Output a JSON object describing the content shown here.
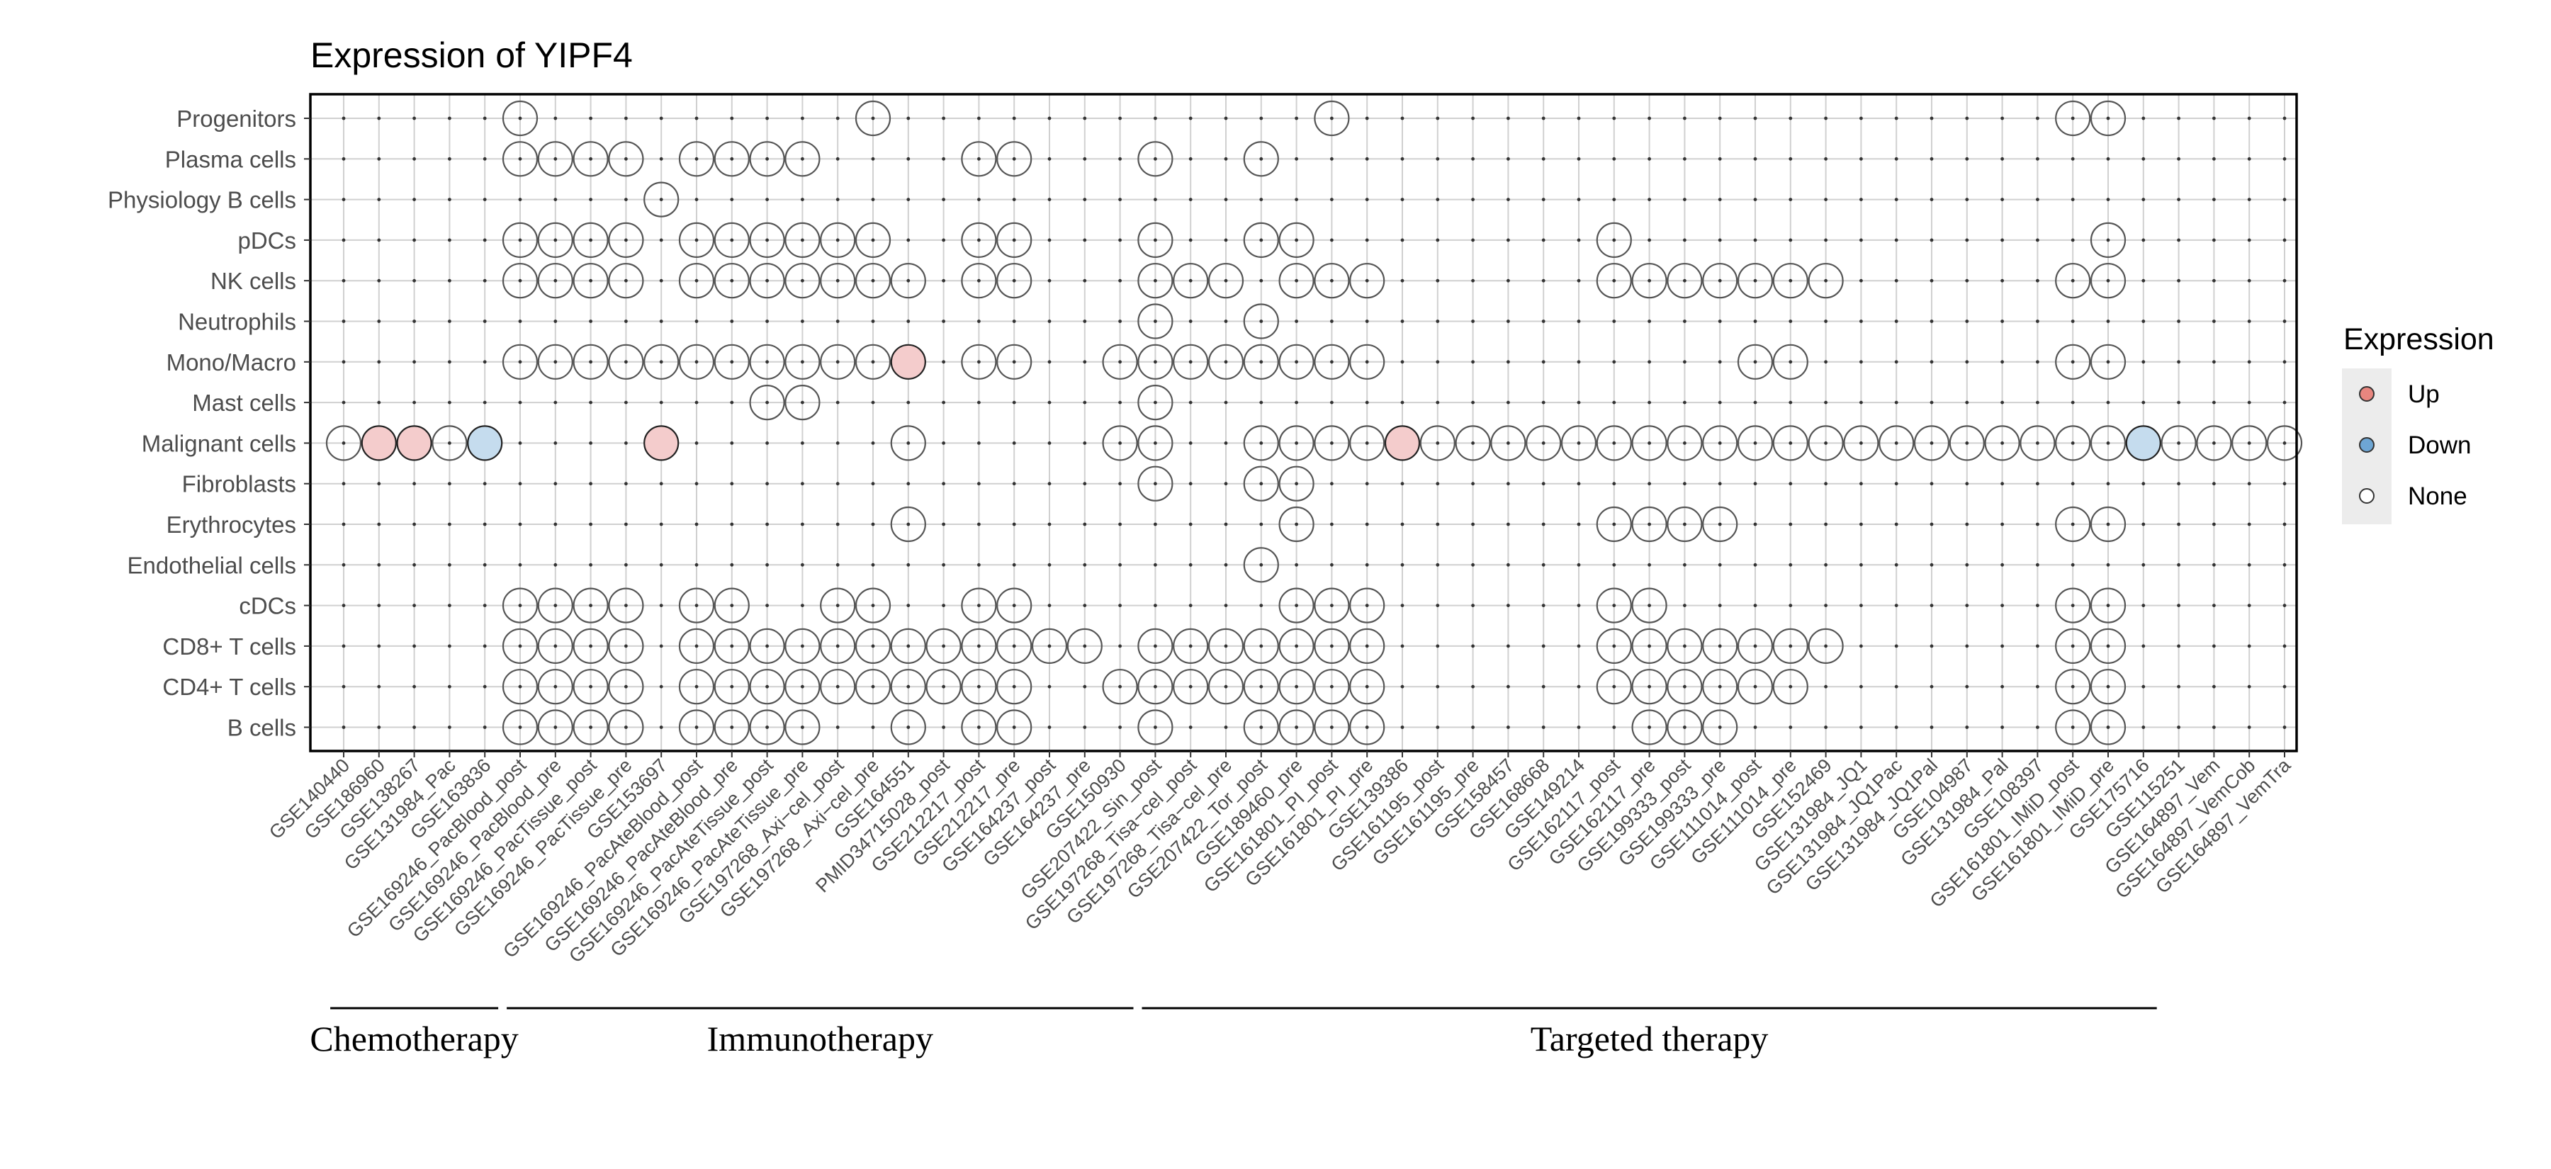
{
  "chart_data": {
    "type": "scatter",
    "title": "Expression of YIPF4",
    "xlabel": "",
    "ylabel": "",
    "grid": true,
    "datasets": [
      "GSE140440",
      "GSE186960",
      "GSE138267",
      "GSE131984_Pac",
      "GSE163836",
      "GSE169246_PacBlood_post",
      "GSE169246_PacBlood_pre",
      "GSE169246_PacTissue_post",
      "GSE169246_PacTissue_pre",
      "GSE153697",
      "GSE169246_PacAteBlood_post",
      "GSE169246_PacAteBlood_pre",
      "GSE169246_PacAteTissue_post",
      "GSE169246_PacAteTissue_pre",
      "GSE197268_Axi−cel_post",
      "GSE197268_Axi−cel_pre",
      "GSE164551",
      "PMID34715028_post",
      "GSE212217_post",
      "GSE212217_pre",
      "GSE164237_post",
      "GSE164237_pre",
      "GSE150930",
      "GSE207422_Sin_post",
      "GSE197268_Tisa−cel_post",
      "GSE197268_Tisa−cel_pre",
      "GSE207422_Tor_post",
      "GSE189460_pre",
      "GSE161801_PI_post",
      "GSE161801_PI_pre",
      "GSE139386",
      "GSE161195_post",
      "GSE161195_pre",
      "GSE158457",
      "GSE168668",
      "GSE149214",
      "GSE162117_post",
      "GSE162117_pre",
      "GSE199333_post",
      "GSE199333_pre",
      "GSE111014_post",
      "GSE111014_pre",
      "GSE152469",
      "GSE131984_JQ1",
      "GSE131984_JQ1Pac",
      "GSE131984_JQ1Pal",
      "GSE104987",
      "GSE131984_Pal",
      "GSE108397",
      "GSE161801_IMiD_post",
      "GSE161801_IMiD_pre",
      "GSE175716",
      "GSE115251",
      "GSE164897_Vem",
      "GSE164897_VemCob",
      "GSE164897_VemTra"
    ],
    "cell_types": [
      "Progenitors",
      "Plasma cells",
      "Physiology B cells",
      "pDCs",
      "NK cells",
      "Neutrophils",
      "Mono/Macro",
      "Mast cells",
      "Malignant cells",
      "Fibroblasts",
      "Erythrocytes",
      "Endothelial cells",
      "cDCs",
      "CD8+ T cells",
      "CD4+ T cells",
      "B cells"
    ],
    "present": {
      "Progenitors": [
        5,
        15,
        28,
        49,
        50
      ],
      "Plasma cells": [
        5,
        6,
        7,
        8,
        10,
        11,
        12,
        13,
        18,
        19,
        23,
        26
      ],
      "Physiology B cells": [
        9
      ],
      "pDCs": [
        5,
        6,
        7,
        8,
        10,
        11,
        12,
        13,
        14,
        15,
        18,
        19,
        23,
        26,
        27,
        36,
        50
      ],
      "NK cells": [
        5,
        6,
        7,
        8,
        10,
        11,
        12,
        13,
        14,
        15,
        16,
        18,
        19,
        23,
        24,
        25,
        27,
        28,
        29,
        36,
        37,
        38,
        39,
        40,
        41,
        42,
        49,
        50
      ],
      "Neutrophils": [
        23,
        26
      ],
      "Mono/Macro": [
        5,
        6,
        7,
        8,
        9,
        10,
        11,
        12,
        13,
        14,
        15,
        16,
        18,
        19,
        22,
        23,
        24,
        25,
        26,
        27,
        28,
        29,
        40,
        41,
        49,
        50
      ],
      "Mast cells": [
        12,
        13,
        23
      ],
      "Malignant cells": [
        0,
        1,
        2,
        3,
        4,
        9,
        16,
        22,
        23,
        26,
        27,
        28,
        29,
        30,
        31,
        32,
        33,
        34,
        35,
        36,
        37,
        38,
        39,
        40,
        41,
        42,
        43,
        44,
        45,
        46,
        47,
        48,
        49,
        50,
        51,
        52,
        53,
        54,
        55
      ],
      "Fibroblasts": [
        23,
        26,
        27
      ],
      "Erythrocytes": [
        16,
        27,
        36,
        37,
        38,
        39,
        49,
        50
      ],
      "Endothelial cells": [
        26
      ],
      "cDCs": [
        5,
        6,
        7,
        8,
        10,
        11,
        14,
        15,
        18,
        19,
        27,
        28,
        29,
        36,
        37,
        49,
        50
      ],
      "CD8+ T cells": [
        5,
        6,
        7,
        8,
        10,
        11,
        12,
        13,
        14,
        15,
        16,
        17,
        18,
        19,
        20,
        21,
        23,
        24,
        25,
        26,
        27,
        28,
        29,
        36,
        37,
        38,
        39,
        40,
        41,
        42,
        49,
        50
      ],
      "CD4+ T cells": [
        5,
        6,
        7,
        8,
        10,
        11,
        12,
        13,
        14,
        15,
        16,
        17,
        18,
        19,
        22,
        23,
        24,
        25,
        26,
        27,
        28,
        29,
        36,
        37,
        38,
        39,
        40,
        41,
        49,
        50
      ],
      "B cells": [
        5,
        6,
        7,
        8,
        10,
        11,
        12,
        13,
        16,
        18,
        19,
        23,
        26,
        27,
        28,
        29,
        37,
        38,
        39,
        49,
        50
      ]
    },
    "up": [
      {
        "cell_type": "Mono/Macro",
        "dataset": 16
      },
      {
        "cell_type": "Malignant cells",
        "dataset": 1
      },
      {
        "cell_type": "Malignant cells",
        "dataset": 2
      },
      {
        "cell_type": "Malignant cells",
        "dataset": 9
      },
      {
        "cell_type": "Malignant cells",
        "dataset": 30
      }
    ],
    "down": [
      {
        "cell_type": "Malignant cells",
        "dataset": 4
      },
      {
        "cell_type": "Malignant cells",
        "dataset": 51
      }
    ],
    "legend": {
      "title": "Expression",
      "placement": "right",
      "entries": [
        {
          "label": "Up",
          "color": "#f4cccc",
          "dot": "#e8867f"
        },
        {
          "label": "Down",
          "color": "#c5dcee",
          "dot": "#6ea6d4"
        },
        {
          "label": "None",
          "color": "#ffffff",
          "dot": "#ffffff"
        }
      ]
    },
    "groups": [
      {
        "label": "Chemotherapy",
        "first": 0,
        "last": 4
      },
      {
        "label": "Immunotherapy",
        "first": 5,
        "last": 22
      },
      {
        "label": "Targeted therapy",
        "first": 23,
        "last": 51
      }
    ]
  },
  "colors": {
    "up_fill": "#f4cccc",
    "down_fill": "#c5dcee",
    "none_fill": "#ffffff",
    "circle_stroke": "#555555",
    "grid": "#d0d0d0",
    "axis_text": "#4d4d4d",
    "legend_bg": "#ececec"
  }
}
